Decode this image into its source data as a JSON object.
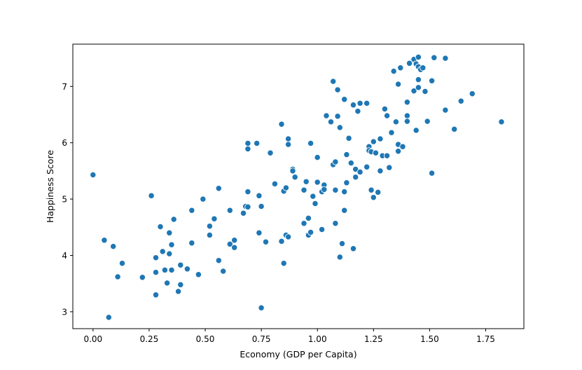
{
  "chart_data": {
    "type": "scatter",
    "xlabel": "Economy (GDP per Capita)",
    "ylabel": "Happiness Score",
    "xlim": [
      -0.09,
      1.92
    ],
    "ylim": [
      2.7,
      7.75
    ],
    "xticks": [
      0.0,
      0.25,
      0.5,
      0.75,
      1.0,
      1.25,
      1.5,
      1.75
    ],
    "xtick_labels": [
      "0.00",
      "0.25",
      "0.50",
      "0.75",
      "1.00",
      "1.25",
      "1.50",
      "1.75"
    ],
    "yticks": [
      3,
      4,
      5,
      6,
      7
    ],
    "ytick_labels": [
      "3",
      "4",
      "5",
      "6",
      "7"
    ],
    "grid": false,
    "legend": "none",
    "marker_color": "#1f77b4",
    "marker_edge": "#ffffff",
    "points": [
      [
        0.0,
        5.43
      ],
      [
        0.05,
        4.27
      ],
      [
        0.07,
        2.9
      ],
      [
        0.09,
        4.16
      ],
      [
        0.11,
        3.62
      ],
      [
        0.13,
        3.86
      ],
      [
        0.22,
        3.61
      ],
      [
        0.26,
        5.06
      ],
      [
        0.28,
        3.96
      ],
      [
        0.28,
        3.7
      ],
      [
        0.28,
        3.3
      ],
      [
        0.3,
        4.51
      ],
      [
        0.31,
        4.07
      ],
      [
        0.32,
        3.74
      ],
      [
        0.33,
        3.51
      ],
      [
        0.34,
        4.4
      ],
      [
        0.34,
        4.03
      ],
      [
        0.35,
        4.19
      ],
      [
        0.35,
        3.74
      ],
      [
        0.36,
        4.64
      ],
      [
        0.38,
        3.36
      ],
      [
        0.39,
        3.48
      ],
      [
        0.39,
        3.83
      ],
      [
        0.42,
        3.76
      ],
      [
        0.44,
        4.22
      ],
      [
        0.44,
        4.8
      ],
      [
        0.47,
        3.66
      ],
      [
        0.49,
        5.0
      ],
      [
        0.52,
        4.52
      ],
      [
        0.52,
        4.36
      ],
      [
        0.54,
        4.65
      ],
      [
        0.56,
        5.19
      ],
      [
        0.56,
        3.91
      ],
      [
        0.58,
        3.72
      ],
      [
        0.61,
        4.8
      ],
      [
        0.61,
        4.2
      ],
      [
        0.63,
        4.27
      ],
      [
        0.63,
        4.14
      ],
      [
        0.67,
        4.75
      ],
      [
        0.68,
        4.87
      ],
      [
        0.69,
        4.86
      ],
      [
        0.69,
        5.13
      ],
      [
        0.69,
        5.89
      ],
      [
        0.69,
        5.99
      ],
      [
        0.73,
        5.99
      ],
      [
        0.74,
        5.06
      ],
      [
        0.74,
        4.4
      ],
      [
        0.75,
        3.07
      ],
      [
        0.75,
        4.87
      ],
      [
        0.77,
        4.24
      ],
      [
        0.79,
        5.82
      ],
      [
        0.81,
        5.27
      ],
      [
        0.84,
        6.33
      ],
      [
        0.84,
        4.25
      ],
      [
        0.85,
        5.14
      ],
      [
        0.85,
        3.86
      ],
      [
        0.86,
        5.2
      ],
      [
        0.86,
        4.36
      ],
      [
        0.87,
        4.33
      ],
      [
        0.87,
        6.07
      ],
      [
        0.87,
        5.97
      ],
      [
        0.89,
        5.53
      ],
      [
        0.89,
        5.5
      ],
      [
        0.9,
        5.39
      ],
      [
        0.94,
        5.16
      ],
      [
        0.94,
        4.57
      ],
      [
        0.95,
        5.31
      ],
      [
        0.96,
        4.36
      ],
      [
        0.96,
        4.66
      ],
      [
        0.97,
        4.41
      ],
      [
        0.97,
        5.99
      ],
      [
        0.98,
        5.05
      ],
      [
        0.99,
        4.92
      ],
      [
        1.0,
        5.3
      ],
      [
        1.0,
        5.74
      ],
      [
        1.02,
        4.46
      ],
      [
        1.02,
        5.13
      ],
      [
        1.03,
        5.25
      ],
      [
        1.03,
        5.17
      ],
      [
        1.04,
        6.48
      ],
      [
        1.06,
        6.37
      ],
      [
        1.07,
        7.09
      ],
      [
        1.07,
        5.61
      ],
      [
        1.08,
        4.57
      ],
      [
        1.08,
        5.66
      ],
      [
        1.08,
        5.16
      ],
      [
        1.09,
        6.94
      ],
      [
        1.09,
        6.47
      ],
      [
        1.1,
        3.97
      ],
      [
        1.1,
        6.27
      ],
      [
        1.11,
        4.21
      ],
      [
        1.12,
        4.8
      ],
      [
        1.12,
        5.13
      ],
      [
        1.12,
        6.77
      ],
      [
        1.13,
        5.29
      ],
      [
        1.13,
        5.79
      ],
      [
        1.14,
        6.08
      ],
      [
        1.15,
        5.64
      ],
      [
        1.16,
        4.12
      ],
      [
        1.16,
        6.67
      ],
      [
        1.17,
        5.39
      ],
      [
        1.17,
        5.53
      ],
      [
        1.18,
        6.56
      ],
      [
        1.19,
        6.7
      ],
      [
        1.19,
        5.48
      ],
      [
        1.22,
        6.7
      ],
      [
        1.22,
        5.57
      ],
      [
        1.23,
        5.93
      ],
      [
        1.23,
        5.86
      ],
      [
        1.24,
        5.84
      ],
      [
        1.24,
        5.16
      ],
      [
        1.25,
        5.03
      ],
      [
        1.25,
        6.02
      ],
      [
        1.26,
        5.82
      ],
      [
        1.27,
        5.12
      ],
      [
        1.28,
        5.5
      ],
      [
        1.28,
        6.07
      ],
      [
        1.29,
        5.77
      ],
      [
        1.3,
        6.6
      ],
      [
        1.31,
        5.77
      ],
      [
        1.31,
        6.48
      ],
      [
        1.32,
        5.56
      ],
      [
        1.33,
        6.18
      ],
      [
        1.34,
        7.27
      ],
      [
        1.35,
        6.37
      ],
      [
        1.36,
        5.85
      ],
      [
        1.36,
        5.97
      ],
      [
        1.36,
        7.04
      ],
      [
        1.37,
        7.33
      ],
      [
        1.38,
        5.93
      ],
      [
        1.4,
        6.48
      ],
      [
        1.4,
        6.38
      ],
      [
        1.4,
        6.72
      ],
      [
        1.41,
        7.41
      ],
      [
        1.43,
        7.48
      ],
      [
        1.43,
        6.92
      ],
      [
        1.44,
        7.4
      ],
      [
        1.44,
        6.22
      ],
      [
        1.45,
        7.52
      ],
      [
        1.45,
        7.35
      ],
      [
        1.45,
        7.12
      ],
      [
        1.45,
        6.98
      ],
      [
        1.46,
        7.3
      ],
      [
        1.47,
        7.33
      ],
      [
        1.48,
        6.91
      ],
      [
        1.49,
        6.38
      ],
      [
        1.51,
        7.1
      ],
      [
        1.51,
        5.46
      ],
      [
        1.52,
        7.51
      ],
      [
        1.57,
        7.5
      ],
      [
        1.57,
        6.58
      ],
      [
        1.61,
        6.24
      ],
      [
        1.64,
        6.74
      ],
      [
        1.69,
        6.87
      ],
      [
        1.82,
        6.37
      ]
    ]
  }
}
